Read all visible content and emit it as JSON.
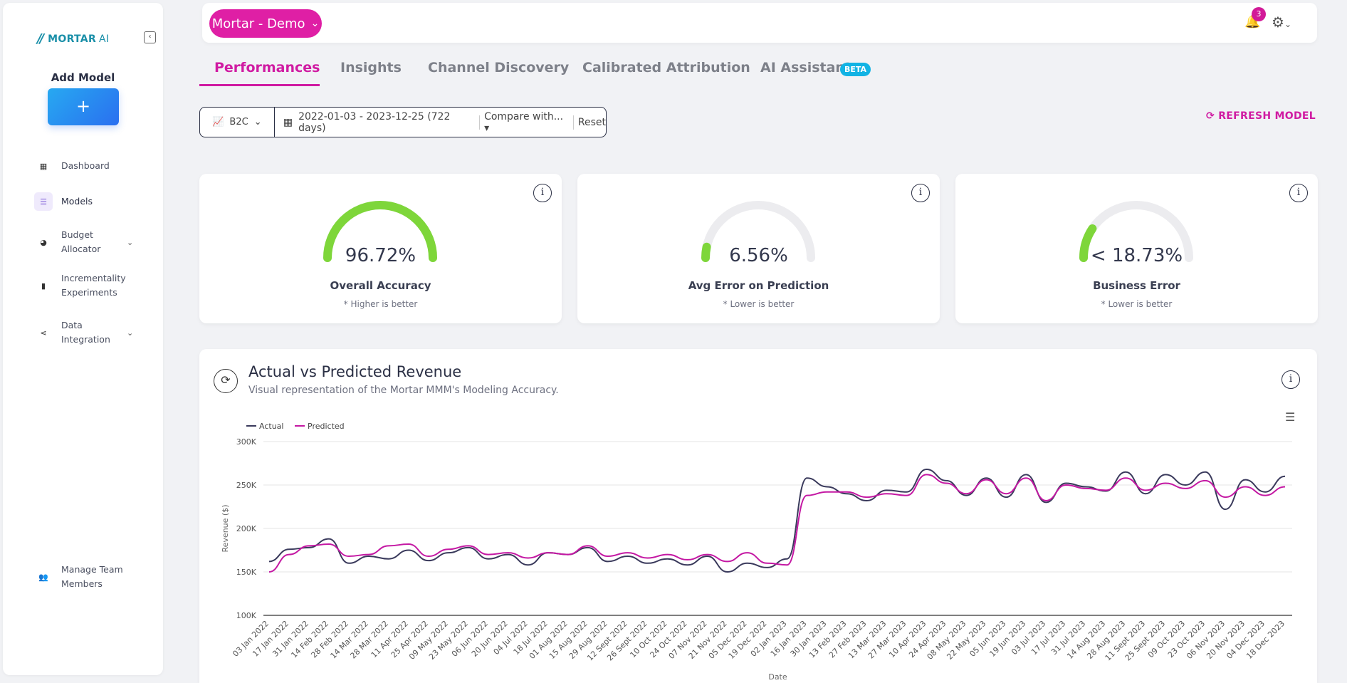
{
  "sidebar": {
    "logo_mark": "//",
    "logo_text": "MORTAR",
    "logo_ai": "AI",
    "add_model_title": "Add Model",
    "add_model_button": "+",
    "items": [
      {
        "label": "Dashboard",
        "icon": "grid-icon"
      },
      {
        "label": "Models",
        "icon": "list-icon",
        "active": true
      },
      {
        "label": "Budget Allocator",
        "icon": "pie-icon"
      },
      {
        "label": "Incrementality Experiments",
        "icon": "bar-chart-icon"
      },
      {
        "label": "Data Integration",
        "icon": "share-icon"
      },
      {
        "label": "Manage Team Members",
        "icon": "users-icon"
      }
    ]
  },
  "topbar": {
    "org_label": "Mortar - Demo",
    "notification_count": "3"
  },
  "tabs": [
    "Performances",
    "Insights",
    "Channel Discovery",
    "Calibrated Attribution",
    "AI Assistant"
  ],
  "beta_badge": "BETA",
  "filter": {
    "segment": "B2C",
    "date_range": "2022-01-03 - 2023-12-25 (722 days)",
    "compare": "Compare with...",
    "reset": "Reset"
  },
  "refresh_label": "REFRESH MODEL",
  "metrics": [
    {
      "value": "96.72%",
      "label": "Overall Accuracy",
      "hint": "* Higher is better",
      "fill": 1.0
    },
    {
      "value": "6.56%",
      "label": "Avg Error on Prediction",
      "hint": "* Lower is better",
      "fill": 0.066
    },
    {
      "value": "< 18.73%",
      "label": "Business Error",
      "hint": "* Lower is better",
      "fill": 0.187
    }
  ],
  "colors": {
    "accent": "#d01ba2",
    "gauge_fill": "#7ed63a",
    "gauge_track": "#ececef",
    "actual": "#3a3a5c",
    "predicted": "#c418a3"
  },
  "chart_panel": {
    "title": "Actual vs Predicted Revenue",
    "subtitle": "Visual representation of the Mortar MMM's Modeling Accuracy."
  },
  "chart_data": {
    "type": "line",
    "title": "",
    "xlabel": "Date",
    "ylabel": "Revenue ($)",
    "ylim": [
      100000,
      300000
    ],
    "yticks": [
      "100K",
      "150K",
      "200K",
      "250K",
      "300K"
    ],
    "legend": "top-left",
    "categories": [
      "03 Jan 2022",
      "17 Jan 2022",
      "31 Jan 2022",
      "14 Feb 2022",
      "28 Feb 2022",
      "14 Mar 2022",
      "28 Mar 2022",
      "11 Apr 2022",
      "25 Apr 2022",
      "09 May 2022",
      "23 May 2022",
      "06 Jun 2022",
      "20 Jun 2022",
      "04 Jul 2022",
      "18 Jul 2022",
      "01 Aug 2022",
      "15 Aug 2022",
      "29 Aug 2022",
      "12 Sept 2022",
      "26 Sept 2022",
      "10 Oct 2022",
      "24 Oct 2022",
      "07 Nov 2022",
      "21 Nov 2022",
      "05 Dec 2022",
      "19 Dec 2022",
      "02 Jan 2023",
      "16 Jan 2023",
      "30 Jan 2023",
      "13 Feb 2023",
      "27 Feb 2023",
      "13 Mar 2023",
      "27 Mar 2023",
      "10 Apr 2023",
      "24 Apr 2023",
      "08 May 2023",
      "22 May 2023",
      "05 Jun 2023",
      "19 Jun 2023",
      "03 Jul 2023",
      "17 Jul 2023",
      "31 Jul 2023",
      "14 Aug 2023",
      "28 Aug 2023",
      "11 Sept 2023",
      "25 Sept 2023",
      "09 Oct 2023",
      "23 Oct 2023",
      "06 Nov 2023",
      "20 Nov 2023",
      "04 Dec 2023",
      "18 Dec 2023"
    ],
    "series": [
      {
        "name": "Actual",
        "values": [
          162000,
          176000,
          178000,
          188000,
          160000,
          168000,
          165000,
          175000,
          163000,
          172000,
          178000,
          165000,
          170000,
          158000,
          172000,
          170000,
          178000,
          162000,
          168000,
          160000,
          165000,
          158000,
          168000,
          150000,
          160000,
          155000,
          165000,
          258000,
          248000,
          240000,
          232000,
          244000,
          242000,
          268000,
          255000,
          238000,
          258000,
          236000,
          262000,
          230000,
          252000,
          248000,
          243000,
          265000,
          240000,
          262000,
          250000,
          265000,
          222000,
          256000,
          242000,
          260000
        ]
      },
      {
        "name": "Predicted",
        "values": [
          150000,
          170000,
          180000,
          182000,
          168000,
          170000,
          180000,
          182000,
          168000,
          176000,
          180000,
          170000,
          172000,
          166000,
          172000,
          170000,
          180000,
          168000,
          172000,
          166000,
          170000,
          164000,
          170000,
          162000,
          172000,
          160000,
          158000,
          238000,
          242000,
          242000,
          236000,
          240000,
          238000,
          262000,
          252000,
          240000,
          256000,
          240000,
          258000,
          232000,
          250000,
          246000,
          244000,
          258000,
          244000,
          252000,
          246000,
          255000,
          236000,
          248000,
          238000,
          248000
        ]
      }
    ]
  }
}
